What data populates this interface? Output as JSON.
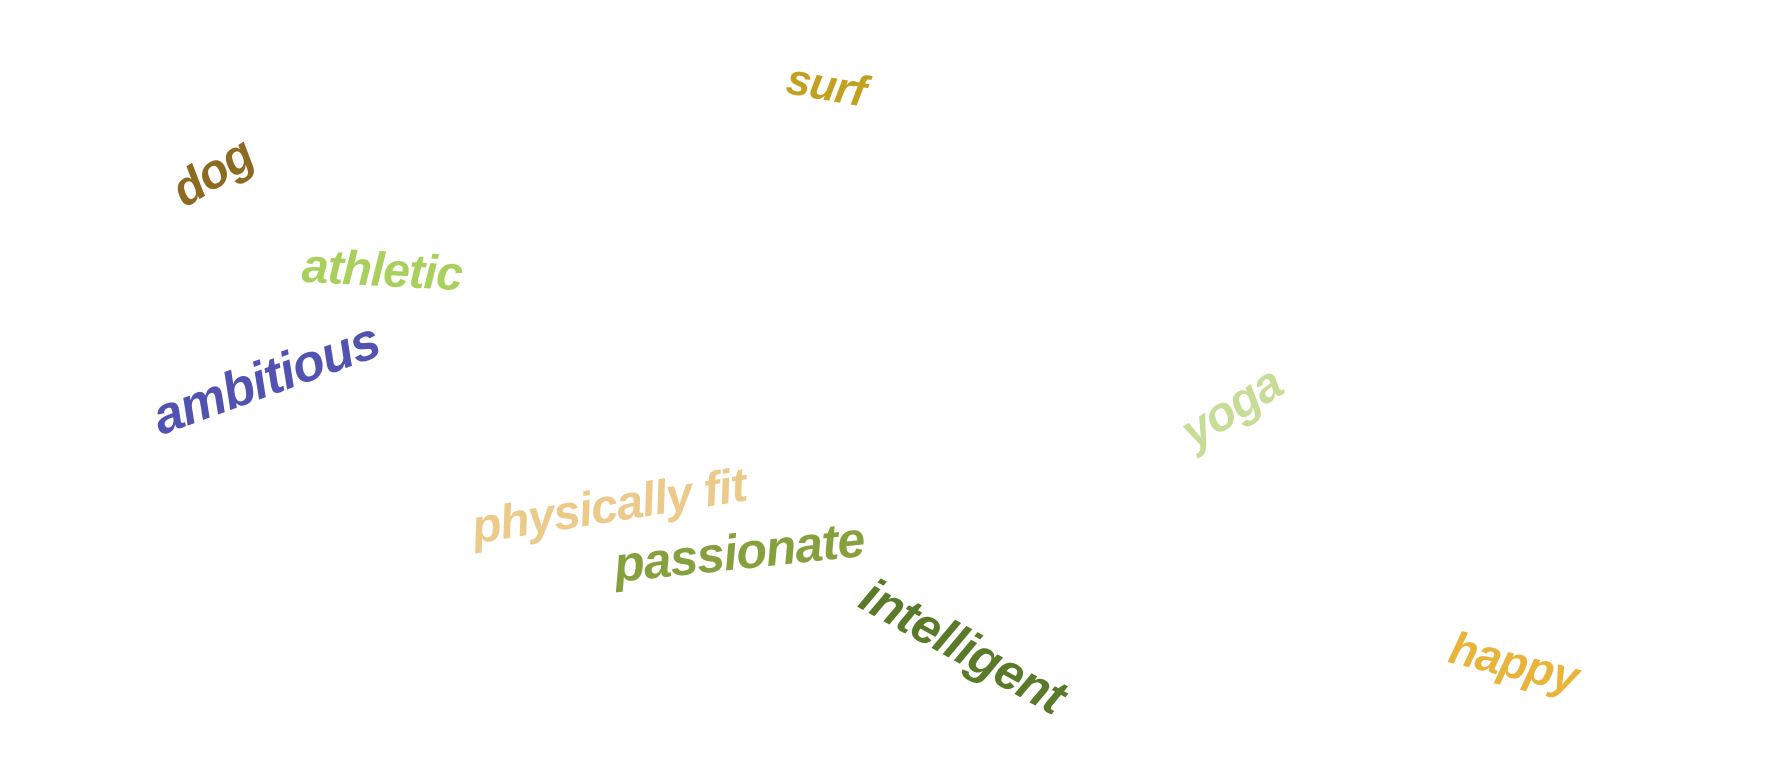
{
  "words": [
    {
      "id": "surf",
      "text": "surf",
      "color": "#c2a020"
    },
    {
      "id": "dog",
      "text": "dog",
      "color": "#8c6a1f"
    },
    {
      "id": "athletic",
      "text": "athletic",
      "color": "#a9d05d"
    },
    {
      "id": "ambitious",
      "text": "ambitious",
      "color": "#5252b0"
    },
    {
      "id": "yoga",
      "text": "yoga",
      "color": "#c7dc96"
    },
    {
      "id": "physically_fit",
      "text": "physically fit",
      "color": "#ecca8a"
    },
    {
      "id": "passionate",
      "text": "passionate",
      "color": "#85a03c"
    },
    {
      "id": "intelligent",
      "text": "intelligent",
      "color": "#5a7a2a"
    },
    {
      "id": "happy",
      "text": "happy",
      "color": "#e8b43a"
    }
  ]
}
